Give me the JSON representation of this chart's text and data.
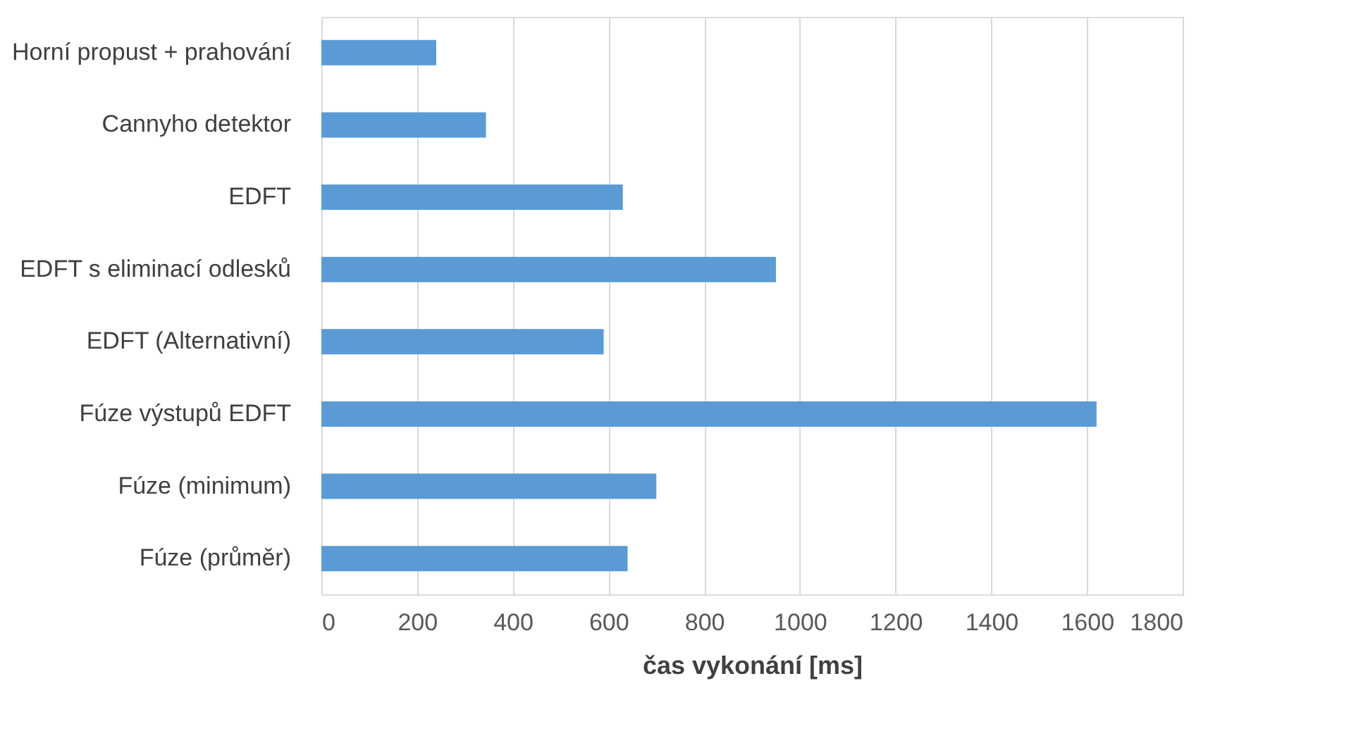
{
  "chart_data": {
    "type": "bar",
    "orientation": "horizontal",
    "xlabel": "čas vykonání [ms]",
    "categories": [
      "Horní propust + prahování",
      "Cannyho detektor",
      "EDFT",
      "EDFT s eliminací odlesků",
      "EDFT (Alternativní)",
      "Fúze výstupů EDFT",
      "Fúze (minimum)",
      "Fúze (průměr)"
    ],
    "values": [
      240,
      344,
      630,
      950,
      590,
      1620,
      700,
      640
    ],
    "color": "#5b9bd5",
    "xlim": [
      0,
      1800
    ],
    "xticks": [
      0,
      200,
      400,
      600,
      800,
      1000,
      1200,
      1400,
      1600,
      1800
    ],
    "grid": "x"
  }
}
